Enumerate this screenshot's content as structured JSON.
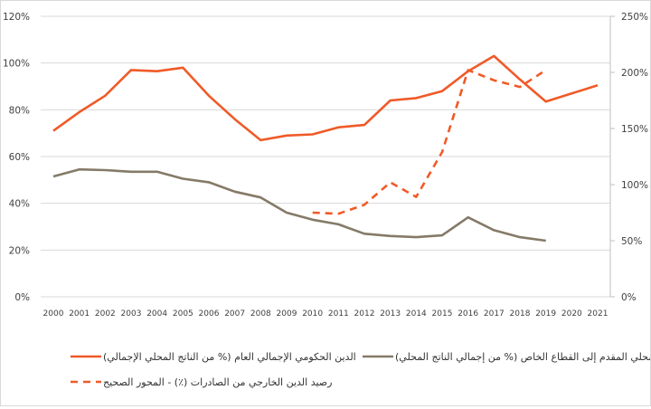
{
  "chart_data": {
    "type": "line",
    "title": "",
    "xlabel": "",
    "ylabel": "",
    "x": [
      "2000",
      "2001",
      "2002",
      "2003",
      "2004",
      "2005",
      "2006",
      "2007",
      "2008",
      "2009",
      "2010",
      "2011",
      "2012",
      "2013",
      "2014",
      "2015",
      "2016",
      "2017",
      "2018",
      "2019",
      "2020",
      "2021"
    ],
    "left_axis": {
      "ylim": [
        0,
        120
      ],
      "ticks": [
        0,
        20,
        40,
        60,
        80,
        100,
        120
      ],
      "tick_labels": [
        "0%",
        "20%",
        "40%",
        "60%",
        "80%",
        "100%",
        "120%"
      ]
    },
    "right_axis": {
      "ylim": [
        0,
        250
      ],
      "ticks": [
        0,
        50,
        100,
        150,
        200,
        250
      ],
      "tick_labels": [
        "0%",
        "50%",
        "100%",
        "150%",
        "200%",
        "250%"
      ]
    },
    "grid": true,
    "legend_position": "bottom",
    "series": [
      {
        "name": "الدين الحكومي الإجمالي العام (% من الناتج المحلي الإجمالي)",
        "axis": "left",
        "style": "solid",
        "color": "#f05a28",
        "values": [
          71,
          79,
          86,
          97,
          96.5,
          98,
          86,
          76,
          67,
          69,
          69.5,
          72.5,
          73.5,
          84,
          85,
          88,
          96.5,
          103,
          93,
          83.5,
          87,
          90.5
        ]
      },
      {
        "name": "الائتمان المحلي المقدم إلى القطاع الخاص (% من إجمالي الناتج المحلي)",
        "axis": "left",
        "style": "solid",
        "color": "#857a68",
        "values": [
          51.5,
          54.5,
          54.2,
          53.5,
          53.5,
          50.5,
          49,
          45,
          42.5,
          36,
          33,
          31,
          27,
          26,
          25.5,
          26.3,
          34,
          28.5,
          25.5,
          24,
          null,
          null
        ]
      },
      {
        "name": "رصيد الدين الخارجي من الصادرات (٪) - المحور الصحيح",
        "axis": "right",
        "style": "dashed",
        "color": "#f05a28",
        "values": [
          null,
          null,
          null,
          null,
          null,
          null,
          null,
          null,
          null,
          null,
          75,
          74,
          82,
          102,
          89,
          129,
          202,
          193,
          187,
          202,
          null,
          null
        ]
      }
    ]
  }
}
